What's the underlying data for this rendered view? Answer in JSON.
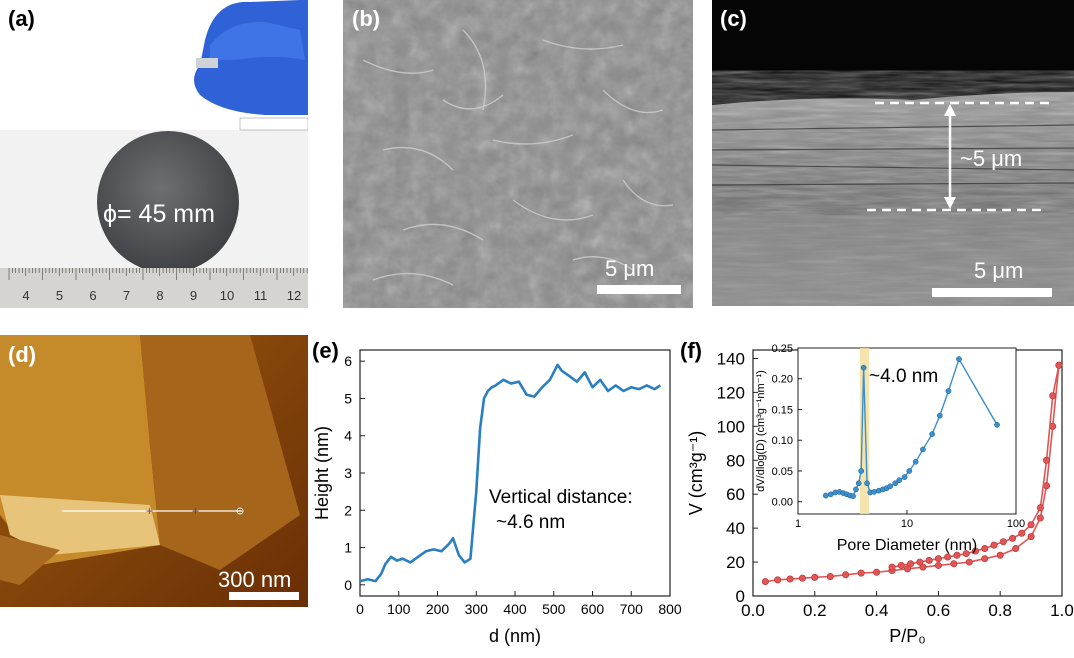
{
  "panels": {
    "a": {
      "label": "(a)",
      "diameter_label": "ϕ= 45 mm",
      "ruler_ticks": [
        "4",
        "5",
        "6",
        "7",
        "8",
        "9",
        "10",
        "11",
        "12"
      ]
    },
    "b": {
      "label": "(b)",
      "scale_label": "5 μm"
    },
    "c": {
      "label": "(c)",
      "scale_label": "5 μm",
      "thickness_label": "~5 μm"
    },
    "d": {
      "label": "(d)",
      "scale_label": "300 nm"
    },
    "e": {
      "label": "(e)",
      "annotation_line1": "Vertical distance:",
      "annotation_line2": "~4.6 nm"
    },
    "f": {
      "label": "(f)",
      "inset_annotation": "~4.0 nm"
    }
  },
  "colors": {
    "line_blue": "#2a7fc0",
    "iso_red": "#e05555",
    "inset_blue": "#3a8fcc",
    "highlight": "#f3dfa0"
  },
  "chart_data": [
    {
      "type": "line",
      "panel": "e",
      "xlabel": "d (nm)",
      "ylabel": "Height (nm)",
      "xlim": [
        0,
        800
      ],
      "ylim": [
        -0.3,
        6.3
      ],
      "xticks": [
        0,
        100,
        200,
        300,
        400,
        500,
        600,
        700,
        800
      ],
      "yticks": [
        0,
        1,
        2,
        3,
        4,
        5,
        6
      ],
      "x": [
        0,
        20,
        40,
        55,
        65,
        80,
        95,
        110,
        130,
        150,
        170,
        190,
        210,
        230,
        240,
        255,
        270,
        285,
        300,
        310,
        320,
        330,
        340,
        350,
        370,
        390,
        410,
        430,
        450,
        470,
        490,
        510,
        520,
        540,
        560,
        580,
        600,
        620,
        640,
        660,
        680,
        700,
        720,
        740,
        760,
        775
      ],
      "y": [
        0.1,
        0.15,
        0.1,
        0.3,
        0.55,
        0.75,
        0.65,
        0.7,
        0.6,
        0.75,
        0.9,
        0.95,
        0.9,
        1.1,
        1.25,
        0.8,
        0.6,
        0.7,
        2.5,
        4.2,
        5.0,
        5.2,
        5.3,
        5.35,
        5.5,
        5.4,
        5.45,
        5.1,
        5.05,
        5.3,
        5.5,
        5.9,
        5.75,
        5.6,
        5.45,
        5.7,
        5.3,
        5.5,
        5.2,
        5.35,
        5.2,
        5.3,
        5.25,
        5.35,
        5.25,
        5.35
      ]
    },
    {
      "type": "line",
      "panel": "f",
      "xlabel": "P/P₀",
      "ylabel": "V (cm³g⁻¹)",
      "xlim": [
        0.0,
        1.0
      ],
      "ylim": [
        0,
        145
      ],
      "xticks": [
        "0.0",
        "0.2",
        "0.4",
        "0.6",
        "0.8",
        "1.0"
      ],
      "yticks": [
        0,
        20,
        40,
        60,
        80,
        100,
        120,
        140
      ],
      "series": [
        {
          "x": [
            0.04,
            0.08,
            0.12,
            0.16,
            0.2,
            0.25,
            0.3,
            0.35,
            0.4,
            0.45,
            0.5,
            0.55,
            0.6,
            0.65,
            0.7,
            0.75,
            0.8,
            0.85,
            0.9,
            0.93,
            0.95,
            0.97,
            0.99
          ],
          "values": [
            8.5,
            9.5,
            10,
            10.5,
            11,
            11.5,
            12.5,
            13.5,
            14,
            15,
            16,
            17,
            18,
            19,
            20,
            22,
            24,
            28,
            35,
            46,
            65,
            100,
            136
          ]
        },
        {
          "x": [
            0.99,
            0.97,
            0.95,
            0.93,
            0.9,
            0.87,
            0.84,
            0.81,
            0.78,
            0.75,
            0.72,
            0.69,
            0.66,
            0.63,
            0.6,
            0.57,
            0.54,
            0.51,
            0.48,
            0.45
          ],
          "values": [
            136,
            118,
            80,
            52,
            42,
            37,
            34,
            32,
            30,
            28,
            26.5,
            25,
            24,
            23,
            22,
            21,
            20,
            19,
            18,
            17
          ]
        }
      ]
    },
    {
      "type": "line",
      "panel": "f-inset",
      "xlabel": "Pore Diameter (nm)",
      "ylabel": "dV/dlog(D) (cm³g⁻¹nm⁻¹)",
      "xscale": "log",
      "xlim": [
        1,
        100
      ],
      "ylim": [
        -0.02,
        0.25
      ],
      "xticks": [
        "1",
        "10",
        "100"
      ],
      "yticks": [
        "0.00",
        "0.05",
        "0.10",
        "0.15",
        "0.20",
        "0.25"
      ],
      "x": [
        1.8,
        2.0,
        2.2,
        2.4,
        2.6,
        2.8,
        3.0,
        3.2,
        3.4,
        3.6,
        3.8,
        4.0,
        4.3,
        4.6,
        5.0,
        5.5,
        6.0,
        6.5,
        7.0,
        7.8,
        8.5,
        9.5,
        10.5,
        12,
        14,
        17,
        20,
        24,
        30,
        67
      ],
      "y": [
        0.01,
        0.012,
        0.015,
        0.016,
        0.014,
        0.012,
        0.01,
        0.009,
        0.02,
        0.03,
        0.05,
        0.218,
        0.03,
        0.015,
        0.016,
        0.018,
        0.02,
        0.022,
        0.025,
        0.03,
        0.035,
        0.04,
        0.05,
        0.065,
        0.085,
        0.11,
        0.14,
        0.18,
        0.232,
        0.125
      ]
    }
  ]
}
